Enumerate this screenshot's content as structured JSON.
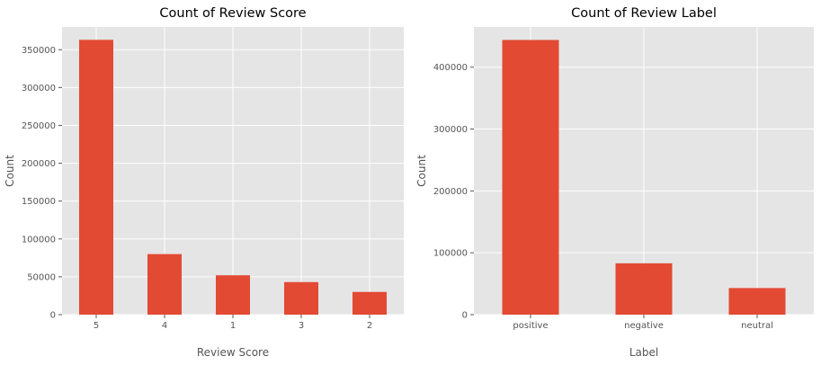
{
  "chart_data": [
    {
      "type": "bar",
      "title": "Count of Review Score",
      "xlabel": "Review Score",
      "ylabel": "Count",
      "categories": [
        "5",
        "4",
        "1",
        "3",
        "2"
      ],
      "values": [
        363000,
        80000,
        52000,
        43000,
        30000
      ],
      "ylim": [
        0,
        380000
      ],
      "yticks": [
        0,
        50000,
        100000,
        150000,
        200000,
        250000,
        300000,
        350000
      ],
      "grid": true,
      "bar_color": "#E24A33"
    },
    {
      "type": "bar",
      "title": "Count of Review Label",
      "xlabel": "Label",
      "ylabel": "Count",
      "categories": [
        "positive",
        "negative",
        "neutral"
      ],
      "values": [
        444000,
        83000,
        43000
      ],
      "ylim": [
        0,
        465000
      ],
      "yticks": [
        0,
        100000,
        200000,
        300000,
        400000
      ],
      "grid": true,
      "bar_color": "#E24A33"
    }
  ],
  "colors": {
    "background": "#E5E5E5",
    "grid": "#FFFFFF",
    "bar": "#E24A33"
  }
}
